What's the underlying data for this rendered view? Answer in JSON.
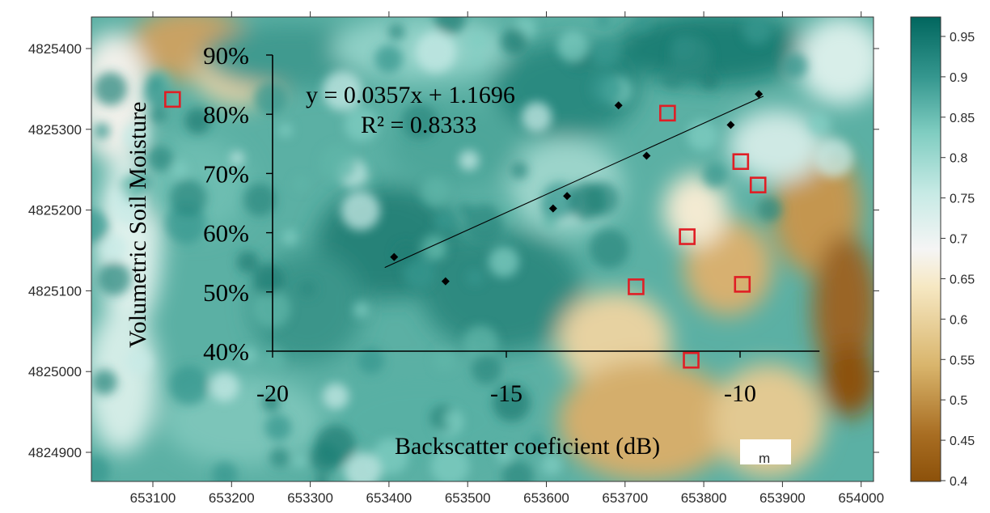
{
  "map": {
    "x_ticks": [
      "653100",
      "653200",
      "653300",
      "653400",
      "653500",
      "653600",
      "653700",
      "653800",
      "653900",
      "654000"
    ],
    "y_ticks": [
      "4825400",
      "4825300",
      "4825200",
      "4825100",
      "4825000",
      "4824900"
    ],
    "scale_label": "m",
    "colormap": {
      "low": "#8c510a",
      "mid": "#f5f5f5",
      "high": "#01665e"
    }
  },
  "colorbar": {
    "ticks": [
      "0.95",
      "0.9",
      "0.85",
      "0.8",
      "0.75",
      "0.7",
      "0.65",
      "0.6",
      "0.55",
      "0.5",
      "0.45",
      "0.4"
    ]
  },
  "chart_data": {
    "type": "scatter",
    "xlabel": "Backscatter coeficient (dB)",
    "ylabel": "Volumetric Soil Moisture",
    "xlim": [
      -20,
      -8.3
    ],
    "ylim": [
      0.4,
      0.9
    ],
    "x_ticks": [
      "-20",
      "-15",
      "-10"
    ],
    "y_ticks": [
      "40%",
      "50%",
      "60%",
      "70%",
      "80%",
      "90%"
    ],
    "equation": "y = 0.0357x + 1.1696",
    "r_squared": "R² = 0.8333",
    "slope": 0.0357,
    "intercept": 1.1696,
    "fit_x_range": [
      -17.6,
      -9.5
    ],
    "series": [
      {
        "x": [
          -17.4,
          -16.3,
          -14.0,
          -13.7,
          -12.6,
          -12.0,
          -10.2,
          -9.6
        ],
        "y": [
          0.559,
          0.518,
          0.641,
          0.662,
          0.815,
          0.73,
          0.782,
          0.834
        ]
      }
    ],
    "marker_color": "#000000",
    "grid": false
  },
  "sample_points": {
    "color": "#e01e25",
    "coords": [
      [
        653125,
        4825337
      ],
      [
        653754,
        4825320
      ],
      [
        653847,
        4825260
      ],
      [
        653869,
        4825231
      ],
      [
        653779,
        4825167
      ],
      [
        653714,
        4825105
      ],
      [
        653849,
        4825108
      ],
      [
        653784,
        4825014
      ]
    ]
  }
}
